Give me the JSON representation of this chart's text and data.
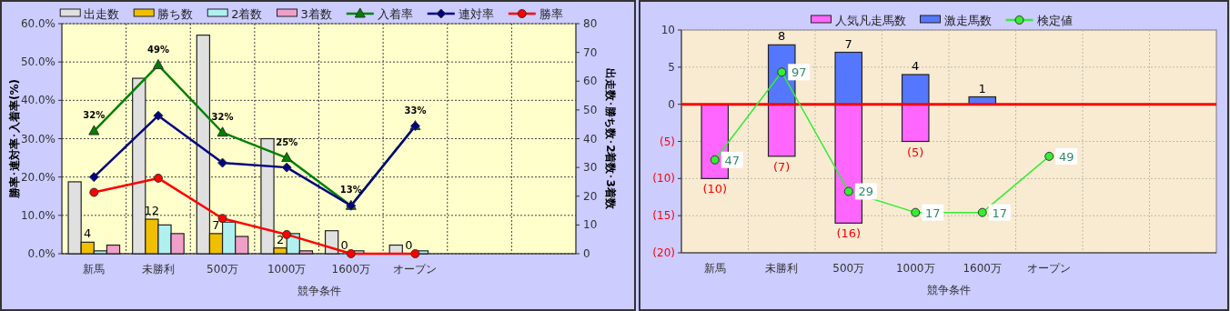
{
  "chart_data": [
    {
      "type": "bar",
      "categories": [
        "新馬",
        "未勝利",
        "500万",
        "1000万",
        "1600万",
        "オープン",
        null,
        null
      ],
      "xlabel": "競争条件",
      "ylabel": "勝率･連対率･入着率(%)",
      "y2label": "出走数･勝ち数･2着数･3着数",
      "ylim": [
        0,
        60
      ],
      "yticks": [
        {
          "value": 0,
          "label": "0.0%"
        },
        {
          "value": 10,
          "label": "10.0%"
        },
        {
          "value": 20,
          "label": "20.0%"
        },
        {
          "value": 30,
          "label": "30.0%"
        },
        {
          "value": 40,
          "label": "40.0%"
        },
        {
          "value": 50,
          "label": "50.0%"
        },
        {
          "value": 60,
          "label": "60.0%"
        }
      ],
      "y2lim": [
        0,
        80
      ],
      "y2ticks": [
        0,
        10,
        20,
        30,
        40,
        50,
        60,
        70,
        80
      ],
      "grid": true,
      "legend": "top",
      "series": [
        {
          "name": "出走数",
          "type": "bar",
          "axis": "y2",
          "color": "#e0e0e0",
          "values": [
            25,
            61,
            76,
            40,
            8,
            3,
            null,
            null
          ]
        },
        {
          "name": "勝ち数",
          "type": "bar",
          "axis": "y2",
          "color": "#f0c000",
          "values": [
            4,
            12,
            7,
            2,
            0,
            0,
            null,
            null
          ],
          "value_labels": [
            "4",
            "12",
            "7",
            "2",
            "0",
            "0",
            null,
            null
          ]
        },
        {
          "name": "2着数",
          "type": "bar",
          "axis": "y2",
          "color": "#b0f0f0",
          "values": [
            1,
            10,
            11,
            7,
            1,
            1,
            null,
            null
          ]
        },
        {
          "name": "3着数",
          "type": "bar",
          "axis": "y2",
          "color": "#f0a0c8",
          "values": [
            3,
            7,
            6,
            1,
            0,
            0,
            null,
            null
          ]
        },
        {
          "name": "入着率",
          "type": "line",
          "color": "#008000",
          "marker": "triangle",
          "values": [
            32,
            49.2,
            31.6,
            25,
            12.5,
            33.3,
            null,
            null
          ],
          "value_labels": [
            "32%",
            "49%",
            "32%",
            "25%",
            "13%",
            "33%",
            null,
            null
          ]
        },
        {
          "name": "連対率",
          "type": "line",
          "color": "#000080",
          "marker": "diamond",
          "values": [
            20,
            36,
            23.7,
            22.5,
            12.5,
            33.3,
            null,
            null
          ]
        },
        {
          "name": "勝率",
          "type": "line",
          "color": "#ff0000",
          "marker": "circle",
          "values": [
            16,
            19.7,
            9.2,
            5,
            0,
            0,
            null,
            null
          ]
        }
      ]
    },
    {
      "type": "bar",
      "stacked": true,
      "categories": [
        "新馬",
        "未勝利",
        "500万",
        "1000万",
        "1600万",
        "オープン",
        null,
        null
      ],
      "xlabel": "競争条件",
      "ylim": [
        -20,
        10
      ],
      "yticks": [
        10,
        5,
        0,
        {
          "value": -5,
          "label": "(5)"
        },
        {
          "value": -10,
          "label": "(10)"
        },
        {
          "value": -15,
          "label": "(15)"
        },
        {
          "value": -20,
          "label": "(20)"
        }
      ],
      "y2lim": [
        -6,
        121
      ],
      "grid": true,
      "legend": "top",
      "ref_lines": [
        {
          "axis": "y",
          "value": 0,
          "color": "#ff0000"
        }
      ],
      "series": [
        {
          "name": "人気凡走馬数",
          "color": "#ff66ff",
          "values": [
            -10,
            -7,
            -16,
            -5,
            0,
            0,
            null,
            null
          ],
          "value_labels": [
            "(10)",
            "(7)",
            "(16)",
            "(5)",
            null,
            null,
            null,
            null
          ]
        },
        {
          "name": "激走馬数",
          "color": "#5577ff",
          "values": [
            0,
            8,
            7,
            4,
            1,
            0,
            null,
            null
          ],
          "value_labels": [
            null,
            "8",
            "7",
            "4",
            "1",
            null,
            null,
            null
          ]
        },
        {
          "name": "検定値",
          "type": "line",
          "axis": "y2",
          "color": "#33ee33",
          "marker": "circle",
          "values": [
            47,
            97,
            29,
            17,
            17,
            49,
            null,
            null
          ],
          "value_labels": [
            "47",
            "97",
            "29",
            "17",
            "17",
            "49",
            null,
            null
          ]
        }
      ]
    }
  ]
}
